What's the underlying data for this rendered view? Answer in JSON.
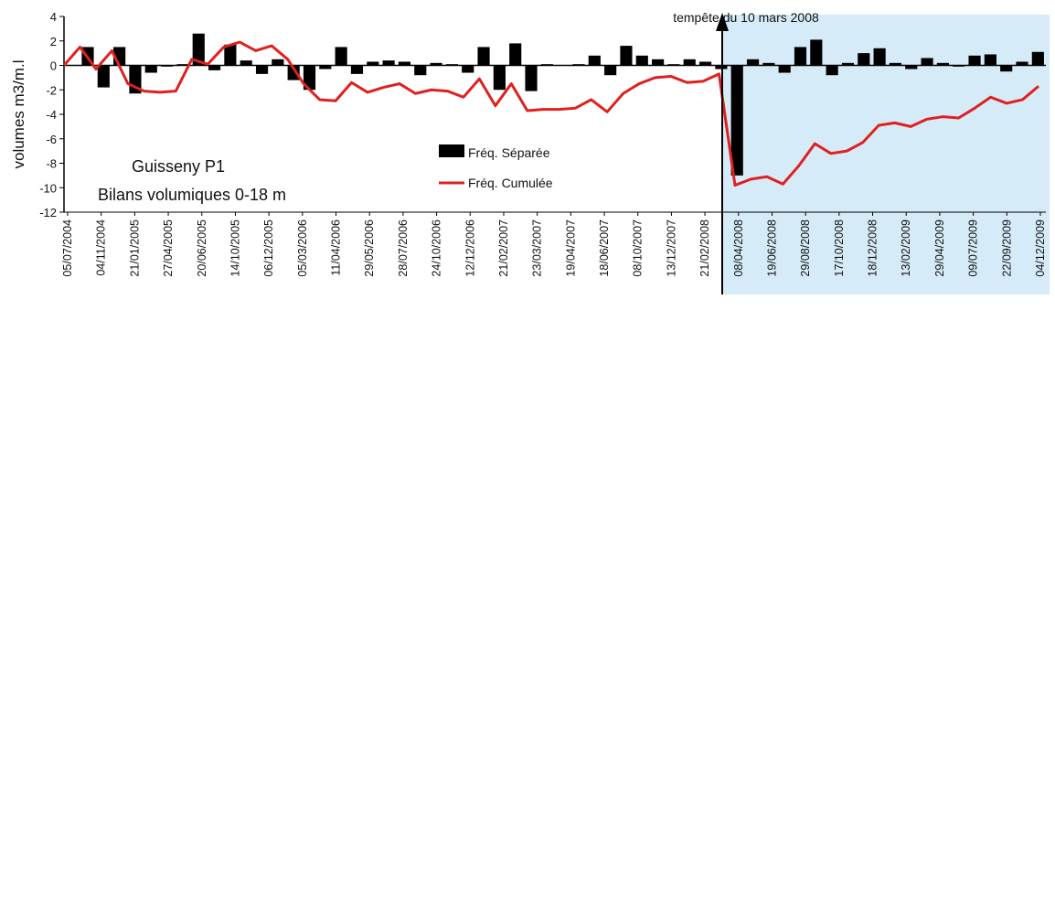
{
  "annotation": "tempête du 10 mars 2008",
  "ylabel": "volumes m3/m.l",
  "legend": {
    "bar": "Fréq. Séparée",
    "line": "Fréq. Cumulée"
  },
  "colors": {
    "bar": "#000000",
    "line": "#e02020",
    "post_storm_bg": "#d6ebf8",
    "axis": "#000000"
  },
  "chart_data": [
    {
      "type": "bar",
      "title": "Guisseny P1",
      "subtitle": "Bilans volumiques 0-18 m",
      "ylim": [
        -12,
        4
      ],
      "yticks": [
        4,
        2,
        0,
        -2,
        -4,
        -6,
        -8,
        -10,
        -12
      ],
      "storm_index": 53,
      "xtick_labels": [
        "05/07/2004",
        "04/11/2004",
        "21/01/2005",
        "27/04/2005",
        "20/06/2005",
        "14/10/2005",
        "06/12/2005",
        "05/03/2006",
        "11/04/2006",
        "29/05/2006",
        "28/07/2006",
        "24/10/2006",
        "12/12/2006",
        "21/02/2007",
        "23/03/2007",
        "19/04/2007",
        "18/06/2007",
        "08/10/2007",
        "13/12/2007",
        "21/02/2008",
        "08/04/2008",
        "19/06/2008",
        "29/08/2008",
        "17/10/2008",
        "18/12/2008",
        "13/02/2009",
        "29/04/2009",
        "09/07/2009",
        "22/09/2009",
        "04/12/2009"
      ],
      "series": [
        {
          "kind": "bar",
          "values": [
            0,
            1.5,
            -1.8,
            1.5,
            -2.3,
            -0.6,
            -0.1,
            0.1,
            2.6,
            -0.4,
            1.7,
            0.4,
            -0.7,
            0.5,
            -1.2,
            -2.0,
            -0.3,
            1.5,
            -0.7,
            0.3,
            0.4,
            0.3,
            -0.8,
            0.2,
            0.1,
            -0.6,
            1.5,
            -2.0,
            1.8,
            -2.1,
            0.1,
            0,
            0.1,
            0.8,
            -0.8,
            1.6,
            0.8,
            0.5,
            0.1,
            0.5,
            0.3,
            -0.3,
            -9.0,
            0.5,
            0.2,
            -0.6,
            1.5,
            2.1,
            -0.8,
            0.2,
            1.0,
            1.4,
            0.2,
            -0.3,
            0.6,
            0.2,
            -0.1,
            0.8,
            0.9,
            -0.5,
            0.3,
            1.1
          ]
        },
        {
          "kind": "line",
          "values": [
            0,
            1.5,
            -0.3,
            1.2,
            -1.5,
            -2.1,
            -2.2,
            -2.1,
            0.5,
            0.1,
            1.5,
            1.9,
            1.2,
            1.6,
            0.5,
            -1.5,
            -2.8,
            -2.9,
            -1.4,
            -2.2,
            -1.8,
            -1.5,
            -2.3,
            -2.0,
            -2.1,
            -2.6,
            -1.1,
            -3.3,
            -1.5,
            -3.7,
            -3.6,
            -3.6,
            -3.5,
            -2.8,
            -3.8,
            -2.3,
            -1.5,
            -1.0,
            -0.9,
            -1.4,
            -1.3,
            -0.7,
            -9.8,
            -9.3,
            -9.1,
            -9.7,
            -8.2,
            -6.4,
            -7.2,
            -7.0,
            -6.3,
            -4.9,
            -4.7,
            -5.0,
            -4.4,
            -4.2,
            -4.3,
            -3.5,
            -2.6,
            -3.1,
            -2.8,
            -1.7
          ]
        }
      ],
      "line_x_offset": 0,
      "storm_line_index": 42,
      "n_points": 62
    }
  ]
}
